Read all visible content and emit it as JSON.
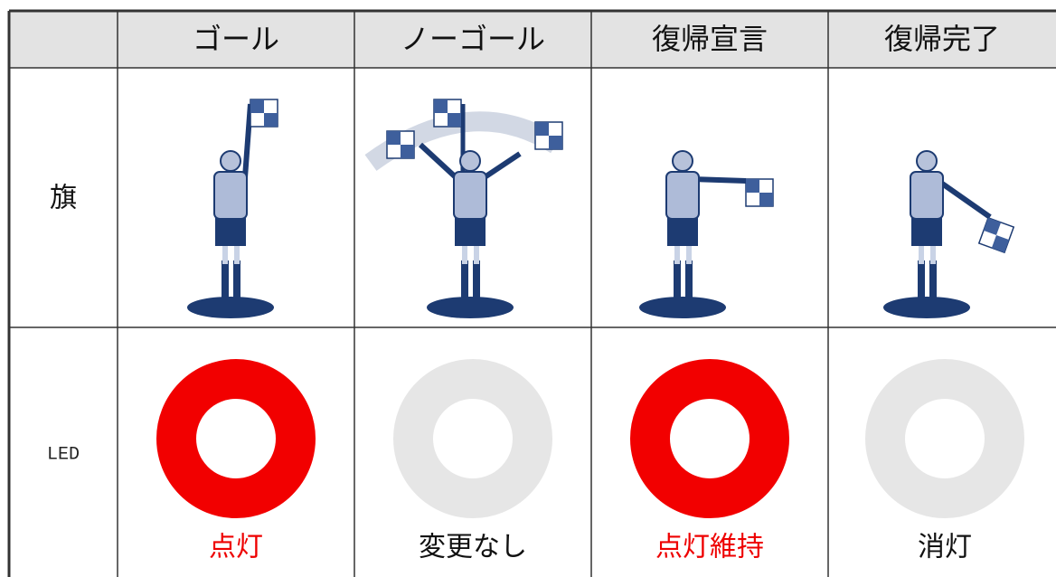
{
  "header": {
    "columns": [
      "ゴール",
      "ノーゴール",
      "復帰宣言",
      "復帰完了"
    ]
  },
  "rows": [
    {
      "label": "旗"
    },
    {
      "label": "LED",
      "states": [
        "点灯",
        "変更なし",
        "点灯維持",
        "消灯"
      ]
    }
  ]
}
